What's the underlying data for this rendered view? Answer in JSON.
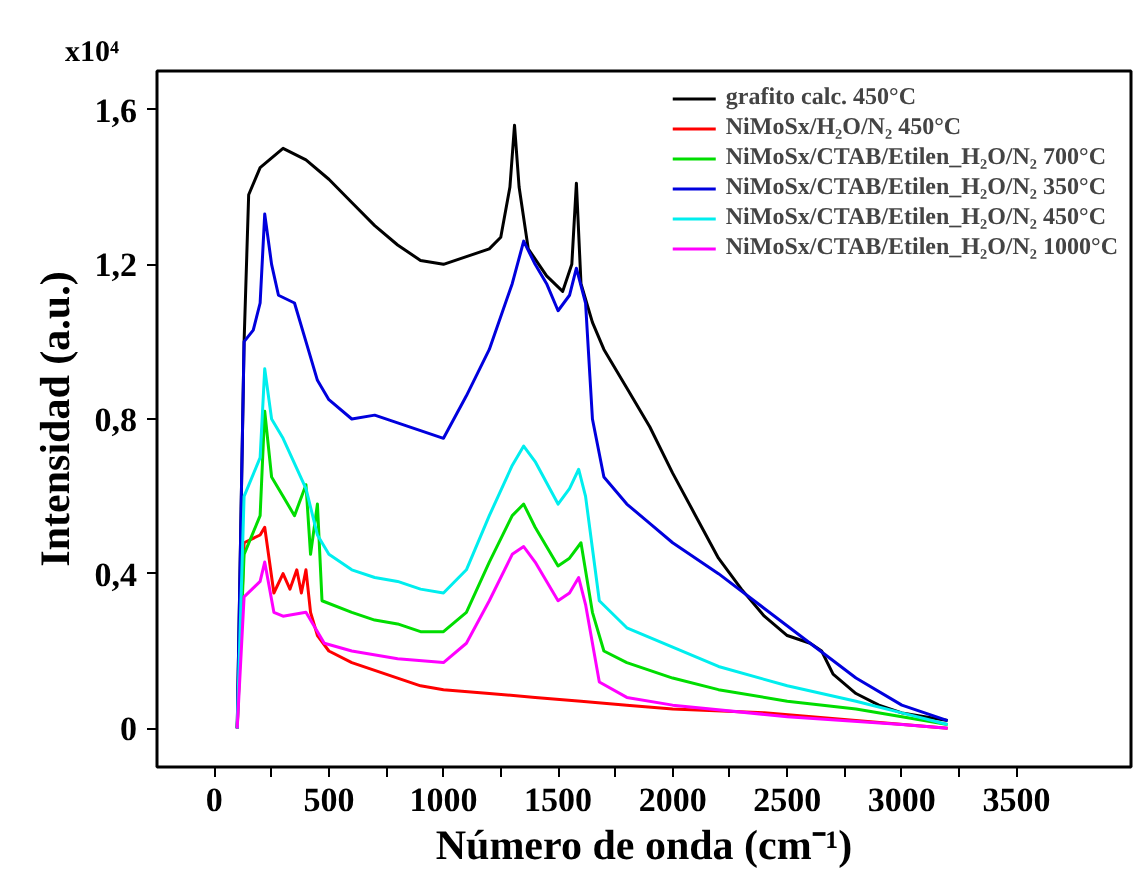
{
  "chart_data": {
    "type": "line",
    "xlabel": "Número de onda (cm⁻¹)",
    "ylabel": "Intensidad (a.u.)",
    "annotations": [
      "x10⁴"
    ],
    "xlim": [
      -250,
      4000
    ],
    "ylim": [
      -0.1,
      1.7
    ],
    "xticks": [
      0,
      {
        "value": 250,
        "label": null
      },
      500,
      {
        "value": 750,
        "label": null
      },
      1000,
      {
        "value": 1250,
        "label": null
      },
      1500,
      {
        "value": 1750,
        "label": null
      },
      2000,
      {
        "value": 2250,
        "label": null
      },
      2500,
      {
        "value": 2750,
        "label": null
      },
      3000,
      {
        "value": 3250,
        "label": null
      },
      3500
    ],
    "yticks": [
      {
        "value": 0,
        "label": "0"
      },
      {
        "value": 0.4,
        "label": "0,4"
      },
      {
        "value": 0.8,
        "label": "0,8"
      },
      {
        "value": 1.2,
        "label": "1,2"
      },
      {
        "value": 1.6,
        "label": "1,6"
      }
    ],
    "grid": false,
    "legend": "top right",
    "line_style": "solid",
    "marker": "none",
    "series": [
      {
        "name": "grafito calc. 450°C",
        "color": "#000000",
        "x": [
          100,
          130,
          150,
          200,
          300,
          400,
          500,
          600,
          700,
          800,
          900,
          1000,
          1100,
          1200,
          1250,
          1290,
          1310,
          1330,
          1370,
          1450,
          1520,
          1560,
          1580,
          1600,
          1650,
          1700,
          1800,
          1900,
          2000,
          2100,
          2200,
          2300,
          2400,
          2500,
          2600,
          2650,
          2700,
          2800,
          2900,
          3000,
          3100,
          3200
        ],
        "values": [
          0.0,
          1.0,
          1.38,
          1.45,
          1.5,
          1.47,
          1.42,
          1.36,
          1.3,
          1.25,
          1.21,
          1.2,
          1.22,
          1.24,
          1.27,
          1.4,
          1.56,
          1.4,
          1.24,
          1.17,
          1.13,
          1.2,
          1.41,
          1.15,
          1.05,
          0.98,
          0.88,
          0.78,
          0.66,
          0.55,
          0.44,
          0.36,
          0.29,
          0.24,
          0.22,
          0.2,
          0.14,
          0.09,
          0.06,
          0.04,
          0.03,
          0.02
        ]
      },
      {
        "name": "NiMoSx/H₂O/N₂ 450°C",
        "color": "#ff0000",
        "x": [
          100,
          130,
          200,
          220,
          260,
          300,
          330,
          360,
          380,
          400,
          420,
          450,
          500,
          600,
          700,
          800,
          900,
          1000,
          1200,
          1400,
          1600,
          1800,
          2000,
          2400,
          2800,
          3200
        ],
        "values": [
          0.0,
          0.48,
          0.5,
          0.52,
          0.35,
          0.4,
          0.36,
          0.41,
          0.35,
          0.41,
          0.3,
          0.24,
          0.2,
          0.17,
          0.15,
          0.13,
          0.11,
          0.1,
          0.09,
          0.08,
          0.07,
          0.06,
          0.05,
          0.04,
          0.02,
          0.0
        ]
      },
      {
        "name": "NiMoSx/CTAB/Etilen_H₂O/N₂ 700°C",
        "color": "#00dd00",
        "x": [
          100,
          130,
          200,
          220,
          250,
          300,
          350,
          400,
          420,
          450,
          470,
          600,
          700,
          800,
          900,
          1000,
          1100,
          1200,
          1300,
          1350,
          1400,
          1500,
          1550,
          1600,
          1650,
          1700,
          1800,
          2000,
          2200,
          2500,
          2800,
          3000,
          3200
        ],
        "values": [
          0.0,
          0.45,
          0.55,
          0.82,
          0.65,
          0.6,
          0.55,
          0.63,
          0.45,
          0.58,
          0.33,
          0.3,
          0.28,
          0.27,
          0.25,
          0.25,
          0.3,
          0.43,
          0.55,
          0.58,
          0.52,
          0.42,
          0.44,
          0.48,
          0.3,
          0.2,
          0.17,
          0.13,
          0.1,
          0.07,
          0.05,
          0.03,
          0.01
        ]
      },
      {
        "name": "NiMoSx/CTAB/Etilen_H₂O/N₂ 350°C",
        "color": "#0000dd",
        "x": [
          100,
          130,
          170,
          200,
          220,
          250,
          280,
          350,
          400,
          450,
          500,
          600,
          700,
          800,
          900,
          1000,
          1100,
          1200,
          1300,
          1350,
          1400,
          1450,
          1500,
          1550,
          1580,
          1620,
          1650,
          1700,
          1800,
          1900,
          2000,
          2200,
          2400,
          2600,
          2800,
          3000,
          3200
        ],
        "values": [
          0.0,
          1.0,
          1.03,
          1.1,
          1.33,
          1.2,
          1.12,
          1.1,
          1.0,
          0.9,
          0.85,
          0.8,
          0.81,
          0.79,
          0.77,
          0.75,
          0.86,
          0.98,
          1.15,
          1.26,
          1.2,
          1.15,
          1.08,
          1.12,
          1.19,
          1.1,
          0.8,
          0.65,
          0.58,
          0.53,
          0.48,
          0.4,
          0.31,
          0.22,
          0.13,
          0.06,
          0.02
        ]
      },
      {
        "name": "NiMoSx/CTAB/Etilen_H₂O/N₂ 450°C",
        "color": "#00eeee",
        "x": [
          100,
          130,
          200,
          220,
          250,
          300,
          400,
          450,
          500,
          600,
          700,
          800,
          900,
          1000,
          1100,
          1200,
          1300,
          1350,
          1400,
          1500,
          1550,
          1590,
          1620,
          1680,
          1800,
          2000,
          2200,
          2500,
          2800,
          3000,
          3200
        ],
        "values": [
          0.0,
          0.6,
          0.7,
          0.93,
          0.8,
          0.75,
          0.62,
          0.5,
          0.45,
          0.41,
          0.39,
          0.38,
          0.36,
          0.35,
          0.41,
          0.55,
          0.68,
          0.73,
          0.69,
          0.58,
          0.62,
          0.67,
          0.6,
          0.33,
          0.26,
          0.21,
          0.16,
          0.11,
          0.07,
          0.04,
          0.01
        ]
      },
      {
        "name": "NiMoSx/CTAB/Etilen_H₂O/N₂ 1000°C",
        "color": "#ff00ff",
        "x": [
          100,
          130,
          200,
          220,
          260,
          300,
          400,
          440,
          480,
          600,
          800,
          1000,
          1100,
          1200,
          1300,
          1350,
          1400,
          1500,
          1550,
          1590,
          1620,
          1680,
          1800,
          2000,
          2500,
          3000,
          3200
        ],
        "values": [
          0.0,
          0.34,
          0.38,
          0.43,
          0.3,
          0.29,
          0.3,
          0.26,
          0.22,
          0.2,
          0.18,
          0.17,
          0.22,
          0.33,
          0.45,
          0.47,
          0.43,
          0.33,
          0.35,
          0.39,
          0.32,
          0.12,
          0.08,
          0.06,
          0.03,
          0.01,
          0.0
        ]
      }
    ]
  }
}
